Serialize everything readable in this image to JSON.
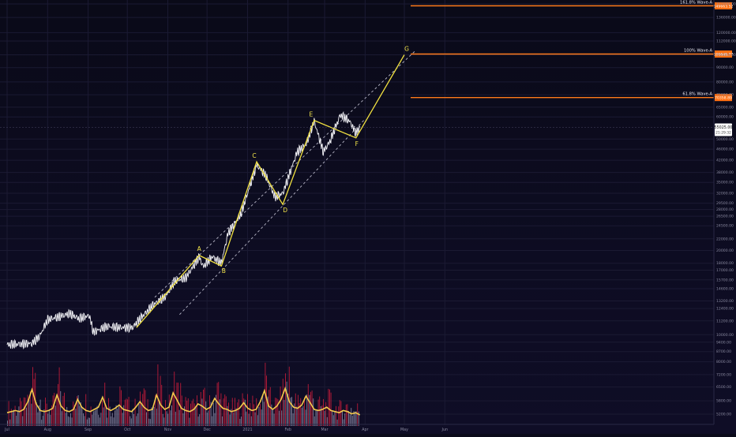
{
  "chart_data": {
    "type": "line",
    "title": "",
    "y_scale": "log",
    "y_ticks": [
      5200,
      5800,
      6500,
      7200,
      8000,
      8700,
      9400,
      10000,
      11200,
      12400,
      13200,
      14600,
      15700,
      17000,
      18000,
      20000,
      22000,
      24500,
      26500,
      28000,
      29500,
      32000,
      35000,
      38000,
      42000,
      46000,
      50000,
      60000,
      65000,
      72000,
      80000,
      90000,
      100000,
      112000,
      120000,
      136000,
      152000
    ],
    "y_tick_labels": [
      "5200.00",
      "5800.00",
      "6500.00",
      "7200.00",
      "8000.00",
      "8700.00",
      "9400.00",
      "10000.00",
      "11200.00",
      "12400.00",
      "13200.00",
      "14600.00",
      "15700.00",
      "17000.00",
      "18000.00",
      "20000.00",
      "22000.00",
      "24500.00",
      "26500.00",
      "28000.00",
      "29500.00",
      "32000.00",
      "35000.00",
      "38000.00",
      "42000.00",
      "46000.00",
      "50000.00",
      "60000.00",
      "65000.00",
      "72000.00",
      "80000.00",
      "90000.00",
      "100000.00",
      "112000.00",
      "120000.00",
      "136000.00",
      "152000.00"
    ],
    "x_ticks": [
      "Jul",
      "Aug",
      "Sep",
      "Oct",
      "Nov",
      "Dec",
      "2021",
      "Feb",
      "Mar",
      "Apr",
      "May",
      "Jun"
    ],
    "price_series": [
      [
        "2020-07-01",
        9200
      ],
      [
        "2020-07-10",
        9250
      ],
      [
        "2020-07-20",
        9300
      ],
      [
        "2020-07-26",
        9900
      ],
      [
        "2020-08-01",
        11300
      ],
      [
        "2020-08-10",
        11600
      ],
      [
        "2020-08-18",
        11900
      ],
      [
        "2020-08-25",
        11400
      ],
      [
        "2020-09-02",
        11700
      ],
      [
        "2020-09-05",
        10200
      ],
      [
        "2020-09-15",
        10700
      ],
      [
        "2020-09-25",
        10600
      ],
      [
        "2020-10-05",
        10600
      ],
      [
        "2020-10-10",
        11300
      ],
      [
        "2020-10-21",
        12800
      ],
      [
        "2020-10-31",
        13800
      ],
      [
        "2020-11-06",
        15500
      ],
      [
        "2020-11-15",
        16000
      ],
      [
        "2020-11-25",
        19000
      ],
      [
        "2020-11-28",
        17500
      ],
      [
        "2020-12-05",
        19000
      ],
      [
        "2020-12-12",
        18000
      ],
      [
        "2020-12-17",
        23000
      ],
      [
        "2020-12-27",
        27000
      ],
      [
        "2021-01-08",
        40500
      ],
      [
        "2021-01-15",
        37000
      ],
      [
        "2021-01-22",
        31000
      ],
      [
        "2021-01-28",
        32000
      ],
      [
        "2021-02-08",
        45000
      ],
      [
        "2021-02-15",
        48000
      ],
      [
        "2021-02-21",
        58000
      ],
      [
        "2021-02-28",
        45000
      ],
      [
        "2021-03-05",
        49000
      ],
      [
        "2021-03-13",
        61000
      ],
      [
        "2021-03-20",
        58000
      ],
      [
        "2021-03-25",
        52500
      ],
      [
        "2021-03-28",
        55025
      ]
    ],
    "wave_points": [
      {
        "label": "",
        "date": "2020-10-08",
        "value": 10600
      },
      {
        "label": "A",
        "date": "2020-11-25",
        "value": 19200
      },
      {
        "label": "B",
        "date": "2020-12-12",
        "value": 17600
      },
      {
        "label": "C",
        "date": "2021-01-08",
        "value": 41500
      },
      {
        "label": "D",
        "date": "2021-01-28",
        "value": 29200
      },
      {
        "label": "E",
        "date": "2021-02-21",
        "value": 58300
      },
      {
        "label": "F",
        "date": "2021-03-25",
        "value": 50500
      },
      {
        "label": "G",
        "date": "2021-05-01",
        "value": 100000
      }
    ],
    "channel": {
      "upper": [
        [
          "2020-10-22",
          13600
        ],
        [
          "2021-05-10",
          104000
        ]
      ],
      "lower": [
        [
          "2020-11-10",
          11800
        ],
        [
          "2021-04-01",
          59000
        ]
      ]
    },
    "levels": [
      {
        "label": "161.8% Wave-A",
        "value": 149663.52,
        "price_label": "149663.52"
      },
      {
        "label": "100% Wave-A",
        "value": 100649.77,
        "price_label": "100649.77"
      },
      {
        "label": "61.8% Wave-A",
        "value": 70358.89,
        "price_label": "70358.89"
      }
    ],
    "current_price": {
      "value": 55025,
      "label": "55025.00",
      "countdown": "21:29:32"
    },
    "volume_scale_max": 100,
    "volume_avg": [
      12,
      13,
      14,
      13,
      15,
      22,
      33,
      20,
      14,
      13,
      14,
      16,
      28,
      18,
      14,
      13,
      15,
      24,
      17,
      14,
      13,
      15,
      17,
      26,
      16,
      14,
      16,
      19,
      15,
      14,
      13,
      17,
      22,
      17,
      14,
      15,
      28,
      19,
      15,
      17,
      30,
      23,
      16,
      14,
      13,
      15,
      20,
      18,
      15,
      17,
      25,
      20,
      16,
      15,
      13,
      14,
      16,
      21,
      16,
      14,
      15,
      22,
      32,
      18,
      15,
      18,
      24,
      34,
      22,
      17,
      16,
      19,
      27,
      21,
      15,
      14,
      15,
      17,
      14,
      13,
      12,
      14,
      13,
      11,
      12,
      10
    ]
  }
}
